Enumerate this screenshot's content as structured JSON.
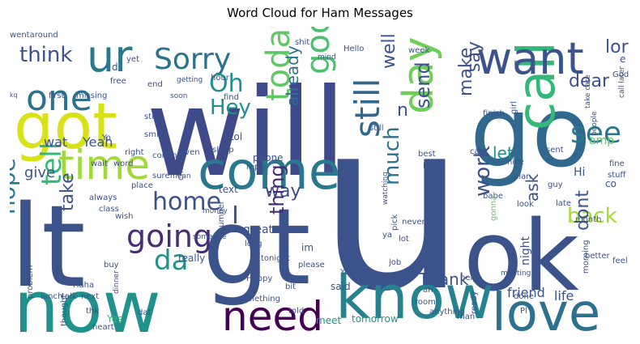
{
  "title": "Word Cloud for Ham Messages",
  "chart_data": {
    "type": "wordcloud",
    "title": "Word Cloud for Ham Messages",
    "colormap": "viridis",
    "background": "#ffffff",
    "words": [
      {
        "text": "u",
        "color": "#3b528b"
      },
      {
        "text": "will",
        "color": "#3e4a89"
      },
      {
        "text": "go",
        "color": "#31688e"
      },
      {
        "text": "gt",
        "color": "#3b528b"
      },
      {
        "text": "lt",
        "color": "#3b528b"
      },
      {
        "text": "ok",
        "color": "#3b528b"
      },
      {
        "text": "now",
        "color": "#21918c"
      },
      {
        "text": "know",
        "color": "#26828e"
      },
      {
        "text": "got",
        "color": "#d8e219"
      },
      {
        "text": "come",
        "color": "#2a788e"
      },
      {
        "text": "call",
        "color": "#35b779"
      },
      {
        "text": "love",
        "color": "#2c728e"
      },
      {
        "text": "ur",
        "color": "#2a788e"
      },
      {
        "text": "want",
        "color": "#3b528b"
      },
      {
        "text": "day",
        "color": "#6ece58"
      },
      {
        "text": "time",
        "color": "#a0da39"
      },
      {
        "text": "need",
        "color": "#440154"
      },
      {
        "text": "one",
        "color": "#2c728e"
      },
      {
        "text": "Sorry",
        "color": "#2c728e"
      },
      {
        "text": "going",
        "color": "#472c7a"
      },
      {
        "text": "still",
        "color": "#31688e"
      },
      {
        "text": "good",
        "color": "#4ac16d"
      },
      {
        "text": "today",
        "color": "#5ec962"
      },
      {
        "text": "home",
        "color": "#3b528b"
      },
      {
        "text": "see",
        "color": "#2a788e"
      },
      {
        "text": "da",
        "color": "#21918c"
      },
      {
        "text": "tell",
        "color": "#35b779"
      },
      {
        "text": "think",
        "color": "#3b528b"
      },
      {
        "text": "lor",
        "color": "#3b528b"
      },
      {
        "text": "take",
        "color": "#3b528b"
      },
      {
        "text": "Hey",
        "color": "#21918c"
      },
      {
        "text": "Oh",
        "color": "#21918c"
      },
      {
        "text": "hope",
        "color": "#2a788e"
      },
      {
        "text": "back",
        "color": "#a0da39"
      },
      {
        "text": "dont",
        "color": "#3b528b"
      },
      {
        "text": "much",
        "color": "#2c728e"
      },
      {
        "text": "send",
        "color": "#3b528b"
      },
      {
        "text": "way",
        "color": "#3e4a89"
      },
      {
        "text": "thing",
        "color": "#482878"
      },
      {
        "text": "work",
        "color": "#3b528b"
      },
      {
        "text": "well",
        "color": "#3b528b"
      },
      {
        "text": "make",
        "color": "#3b528b"
      },
      {
        "text": "say",
        "color": "#3b528b"
      },
      {
        "text": "dear",
        "color": "#3b528b"
      },
      {
        "text": "ask",
        "color": "#3b528b"
      },
      {
        "text": "Thank",
        "color": "#3b528b"
      },
      {
        "text": "later",
        "color": "#3b528b"
      },
      {
        "text": "already",
        "color": "#2c728e"
      },
      {
        "text": "let",
        "color": "#21918c"
      },
      {
        "text": "n",
        "color": "#3b528b"
      },
      {
        "text": "give",
        "color": "#3b528b"
      },
      {
        "text": "Yeah",
        "color": "#3b528b"
      },
      {
        "text": "wat",
        "color": "#3b528b"
      },
      {
        "text": "Hi",
        "color": "#3b528b"
      },
      {
        "text": "I",
        "color": "#3b528b"
      },
      {
        "text": "friend",
        "color": "#3b528b"
      },
      {
        "text": "life",
        "color": "#3b528b"
      },
      {
        "text": "tomorrow",
        "color": "#21918c"
      },
      {
        "text": "meet",
        "color": "#21918c"
      },
      {
        "text": "said",
        "color": "#3b528b"
      },
      {
        "text": "im",
        "color": "#3b528b"
      },
      {
        "text": "great",
        "color": "#3b528b"
      },
      {
        "text": "night",
        "color": "#3b528b"
      },
      {
        "text": "text",
        "color": "#3b528b"
      },
      {
        "text": "phone",
        "color": "#3b528b"
      },
      {
        "text": "really",
        "color": "#3b528b"
      },
      {
        "text": "Lol",
        "color": "#3b528b"
      },
      {
        "text": "amp",
        "color": "#5ec962"
      },
      {
        "text": "Yes",
        "color": "#35b779"
      },
      {
        "text": "co",
        "color": "#3b528b"
      },
      {
        "text": "something",
        "color": "#3b528b"
      },
      {
        "text": "please",
        "color": "#3b528b"
      },
      {
        "text": "told",
        "color": "#3b528b"
      },
      {
        "text": "Happy",
        "color": "#3b528b"
      },
      {
        "text": "long",
        "color": "#3b528b"
      },
      {
        "text": "tonight",
        "color": "#3b528b"
      },
      {
        "text": "bit",
        "color": "#3b528b"
      },
      {
        "text": "Yup",
        "color": "#3b528b"
      },
      {
        "text": "late",
        "color": "#3b528b"
      },
      {
        "text": "first",
        "color": "#3b528b"
      },
      {
        "text": "missing",
        "color": "#3b528b"
      },
      {
        "text": "still",
        "color": "#3b528b"
      },
      {
        "text": "hour",
        "color": "#3b528b"
      },
      {
        "text": "Hello",
        "color": "#3b528b"
      },
      {
        "text": "week",
        "color": "#3b528b"
      },
      {
        "text": "mind",
        "color": "#3b528b"
      },
      {
        "text": "finish",
        "color": "#3b528b"
      },
      {
        "text": "girl",
        "color": "#3b528b"
      },
      {
        "text": "nice",
        "color": "#3b528b"
      },
      {
        "text": "sent",
        "color": "#3b528b"
      },
      {
        "text": "call later",
        "color": "#3b528b"
      },
      {
        "text": "fine",
        "color": "#3b528b"
      },
      {
        "text": "stuff",
        "color": "#3b528b"
      },
      {
        "text": "plan",
        "color": "#3b528b"
      },
      {
        "text": "guy",
        "color": "#3b528b"
      },
      {
        "text": "babe",
        "color": "#3b528b"
      },
      {
        "text": "look",
        "color": "#3b528b"
      },
      {
        "text": "gonna",
        "color": "#5ec962"
      },
      {
        "text": "better",
        "color": "#3b528b"
      },
      {
        "text": "month",
        "color": "#3b528b"
      },
      {
        "text": "feel",
        "color": "#3b528b"
      },
      {
        "text": "morning",
        "color": "#3b528b"
      },
      {
        "text": "meeting",
        "color": "#3b528b"
      },
      {
        "text": "done",
        "color": "#3b528b"
      },
      {
        "text": "help",
        "color": "#3b528b"
      },
      {
        "text": "room",
        "color": "#3b528b"
      },
      {
        "text": "job",
        "color": "#3b528b"
      },
      {
        "text": "lot",
        "color": "#3b528b"
      },
      {
        "text": "never",
        "color": "#3b528b"
      },
      {
        "text": "best",
        "color": "#3b528b"
      },
      {
        "text": "leave",
        "color": "#3b528b"
      },
      {
        "text": "cant",
        "color": "#3b528b"
      },
      {
        "text": "watching",
        "color": "#3b528b"
      },
      {
        "text": "number",
        "color": "#3b528b"
      },
      {
        "text": "check",
        "color": "#3b528b"
      },
      {
        "text": "money",
        "color": "#3b528b"
      },
      {
        "text": "someone",
        "color": "#3b528b"
      },
      {
        "text": "buy",
        "color": "#3b528b"
      },
      {
        "text": "dinner",
        "color": "#3b528b"
      },
      {
        "text": "talk",
        "color": "#3b528b"
      },
      {
        "text": "next",
        "color": "#3b528b"
      },
      {
        "text": "thk",
        "color": "#3b528b"
      },
      {
        "text": "thought",
        "color": "#3b528b"
      },
      {
        "text": "heart",
        "color": "#3b528b"
      },
      {
        "text": "problem",
        "color": "#3b528b"
      },
      {
        "text": "lunch",
        "color": "#3b528b"
      },
      {
        "text": "Haha",
        "color": "#3b528b"
      },
      {
        "text": "class",
        "color": "#3b528b"
      },
      {
        "text": "always",
        "color": "#3b528b"
      },
      {
        "text": "place",
        "color": "#3b528b"
      },
      {
        "text": "wish",
        "color": "#3b528b"
      },
      {
        "text": "wait",
        "color": "#3b528b"
      },
      {
        "text": "word",
        "color": "#3b528b"
      },
      {
        "text": "sure",
        "color": "#3b528b"
      },
      {
        "text": "mean",
        "color": "#3b528b"
      },
      {
        "text": "Yo",
        "color": "#3b528b"
      },
      {
        "text": "right",
        "color": "#3b528b"
      },
      {
        "text": "coming",
        "color": "#3b528b"
      },
      {
        "text": "even",
        "color": "#3b528b"
      },
      {
        "text": "stop",
        "color": "#3b528b"
      },
      {
        "text": "smile",
        "color": "#3b528b"
      },
      {
        "text": "free",
        "color": "#3b528b"
      },
      {
        "text": "end",
        "color": "#3b528b"
      },
      {
        "text": "getting",
        "color": "#3b528b"
      },
      {
        "text": "soon",
        "color": "#3b528b"
      },
      {
        "text": "find",
        "color": "#3b528b"
      },
      {
        "text": "wentaround",
        "color": "#3b528b"
      },
      {
        "text": "yet",
        "color": "#3b528b"
      },
      {
        "text": "shit",
        "color": "#3b528b"
      },
      {
        "text": "sleep",
        "color": "#3b528b"
      },
      {
        "text": "reply",
        "color": "#3b528b"
      },
      {
        "text": "take care",
        "color": "#3b528b"
      },
      {
        "text": "people",
        "color": "#3b528b"
      },
      {
        "text": "God",
        "color": "#3b528b"
      },
      {
        "text": "anything",
        "color": "#3b528b"
      },
      {
        "text": "man",
        "color": "#3b528b"
      },
      {
        "text": "ready",
        "color": "#3b528b"
      },
      {
        "text": "dat",
        "color": "#3b528b"
      },
      {
        "text": "ah",
        "color": "#3b528b"
      },
      {
        "text": "Pl",
        "color": "#3b528b"
      },
      {
        "text": "pick",
        "color": "#3b528b"
      },
      {
        "text": "ya",
        "color": "#3b528b"
      },
      {
        "text": "d",
        "color": "#3b528b"
      },
      {
        "text": "kq",
        "color": "#3b528b"
      },
      {
        "text": "e",
        "color": "#3b528b"
      }
    ]
  }
}
